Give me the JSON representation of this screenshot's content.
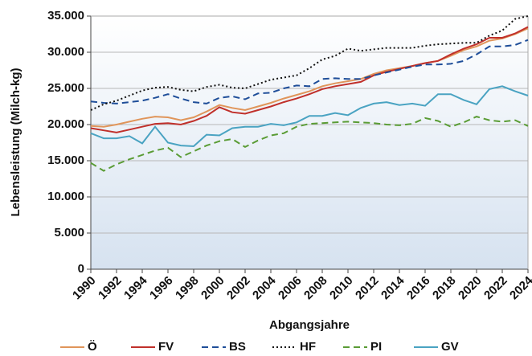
{
  "chart_data": {
    "type": "line",
    "x_label": "Abgangsjahre",
    "y_label": "Lebensleistung (Milch-kg)",
    "x": [
      1990,
      1991,
      1992,
      1993,
      1994,
      1995,
      1996,
      1997,
      1998,
      1999,
      2000,
      2001,
      2002,
      2003,
      2004,
      2005,
      2006,
      2007,
      2008,
      2009,
      2010,
      2011,
      2012,
      2013,
      2014,
      2015,
      2016,
      2017,
      2018,
      2019,
      2020,
      2021,
      2022,
      2023,
      2024
    ],
    "xlim": [
      1990,
      2024
    ],
    "xticks": [
      1990,
      1992,
      1994,
      1996,
      1998,
      2000,
      2002,
      2004,
      2006,
      2008,
      2010,
      2012,
      2014,
      2016,
      2018,
      2020,
      2022,
      2024
    ],
    "ylim": [
      0,
      35000
    ],
    "yticks": [
      0,
      {
        "value": 5000,
        "label": "5.000"
      },
      {
        "value": 10000,
        "label": "10.000"
      },
      {
        "value": 15000,
        "label": "15.000"
      },
      {
        "value": 20000,
        "label": "20.000"
      },
      {
        "value": 25000,
        "label": "25.000"
      },
      {
        "value": 30000,
        "label": "30.000"
      },
      {
        "value": 35000,
        "label": "35.000"
      }
    ],
    "grid": true,
    "legend": "bottom",
    "series": [
      {
        "name": "Ö",
        "color": "#e0955a",
        "dash": "solid",
        "values": [
          19800,
          19700,
          20000,
          20400,
          20800,
          21100,
          21000,
          20600,
          21000,
          21800,
          22700,
          22300,
          22000,
          22500,
          23000,
          23600,
          24100,
          24600,
          25300,
          25700,
          26000,
          26300,
          27000,
          27500,
          27800,
          28100,
          28500,
          28800,
          29500,
          30300,
          30800,
          31600,
          31900,
          32500,
          33300
        ]
      },
      {
        "name": "FV",
        "color": "#c0302b",
        "dash": "solid",
        "values": [
          19500,
          19200,
          18900,
          19300,
          19700,
          20100,
          20200,
          20000,
          20500,
          21200,
          22400,
          21700,
          21500,
          22000,
          22500,
          23100,
          23600,
          24200,
          24900,
          25300,
          25600,
          25900,
          26800,
          27300,
          27700,
          28100,
          28500,
          28800,
          29700,
          30500,
          31100,
          32000,
          32000,
          32600,
          33500
        ]
      },
      {
        "name": "BS",
        "color": "#1f4e99",
        "dash": "dashed",
        "values": [
          23200,
          23000,
          22900,
          23100,
          23300,
          23700,
          24200,
          23600,
          23100,
          22900,
          23700,
          23900,
          23500,
          24300,
          24400,
          25000,
          25400,
          25300,
          26300,
          26400,
          26300,
          26300,
          26800,
          27200,
          27600,
          28000,
          28300,
          28300,
          28400,
          28800,
          29700,
          30800,
          30800,
          31000,
          31700
        ]
      },
      {
        "name": "HF",
        "color": "#111111",
        "dash": "dotted",
        "values": [
          22000,
          22800,
          23300,
          24000,
          24700,
          25100,
          25200,
          24800,
          24600,
          25200,
          25500,
          25100,
          25000,
          25600,
          26200,
          26500,
          26800,
          27800,
          29000,
          29500,
          30500,
          30200,
          30400,
          30600,
          30600,
          30600,
          30900,
          31100,
          31200,
          31300,
          31300,
          32300,
          33000,
          34600,
          35000
        ]
      },
      {
        "name": "PI",
        "color": "#5a9c35",
        "dash": "dashed",
        "values": [
          14700,
          13600,
          14500,
          15200,
          15800,
          16400,
          16800,
          15500,
          16300,
          17100,
          17700,
          18000,
          16900,
          17800,
          18500,
          18800,
          19700,
          20100,
          20200,
          20300,
          20400,
          20300,
          20200,
          20000,
          19900,
          20100,
          20900,
          20500,
          19700,
          20300,
          21100,
          20600,
          20400,
          20600,
          19800
        ]
      },
      {
        "name": "GV",
        "color": "#4aa3c2",
        "dash": "solid",
        "values": [
          18800,
          18100,
          18100,
          18400,
          17400,
          19700,
          17500,
          17100,
          17000,
          18600,
          18500,
          19500,
          19700,
          19700,
          20100,
          19900,
          20300,
          21200,
          21200,
          21600,
          21300,
          22300,
          22900,
          23100,
          22700,
          22900,
          22600,
          24200,
          24200,
          23400,
          22800,
          24900,
          25300,
          24600,
          24000
        ]
      }
    ]
  }
}
